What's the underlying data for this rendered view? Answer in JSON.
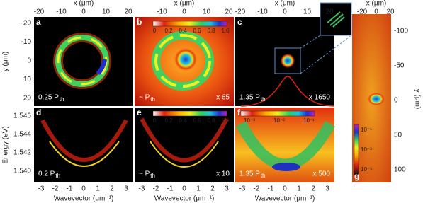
{
  "top_axis": {
    "label": "x (μm)",
    "ticks": [
      "-20",
      "-10",
      "0",
      "10",
      "20"
    ]
  },
  "g_top_axis": {
    "ticks": [
      "-20",
      "0",
      "20"
    ]
  },
  "left_axis": {
    "label": "y (μm)",
    "ticks": [
      "-20",
      "-10",
      "0",
      "10",
      "20"
    ]
  },
  "energy_axis": {
    "label": "Energy (eV)",
    "ticks": [
      "1.546",
      "1.544",
      "1.542",
      "1.540"
    ]
  },
  "bottom_axis": {
    "label": "Wavevector (μm⁻¹)",
    "ticks": [
      "-3",
      "-2",
      "-1",
      "0",
      "1",
      "2",
      "3"
    ]
  },
  "g_right_axis": {
    "label": "y (μm)",
    "ticks": [
      "-100",
      "-50",
      "0",
      "50",
      "100"
    ]
  },
  "colorbar_linear": {
    "ticks": [
      "0",
      "0.2",
      "0.4",
      "0.6",
      "0.8",
      "1.0"
    ]
  },
  "colorbar_log": {
    "ticks": [
      "10⁻³",
      "10⁻²",
      "10⁻¹"
    ]
  },
  "colorbar_g": {
    "ticks": [
      "10⁻¹",
      "10⁻³",
      "10⁻⁵"
    ]
  },
  "panels": [
    {
      "letter": "a",
      "power": "0.25 P",
      "power_sub": "th"
    },
    {
      "letter": "b",
      "power": "~ P",
      "power_sub": "th",
      "gain": "x 65"
    },
    {
      "letter": "c",
      "power": "1.35 P",
      "power_sub": "th",
      "gain": "x 1650"
    },
    {
      "letter": "d",
      "power": "0.2 P",
      "power_sub": "th"
    },
    {
      "letter": "e",
      "power": "~ P",
      "power_sub": "th",
      "gain": "x 10"
    },
    {
      "letter": "f",
      "power": "1.35 P",
      "power_sub": "th",
      "gain": "x 500"
    },
    {
      "letter": "g"
    }
  ]
}
